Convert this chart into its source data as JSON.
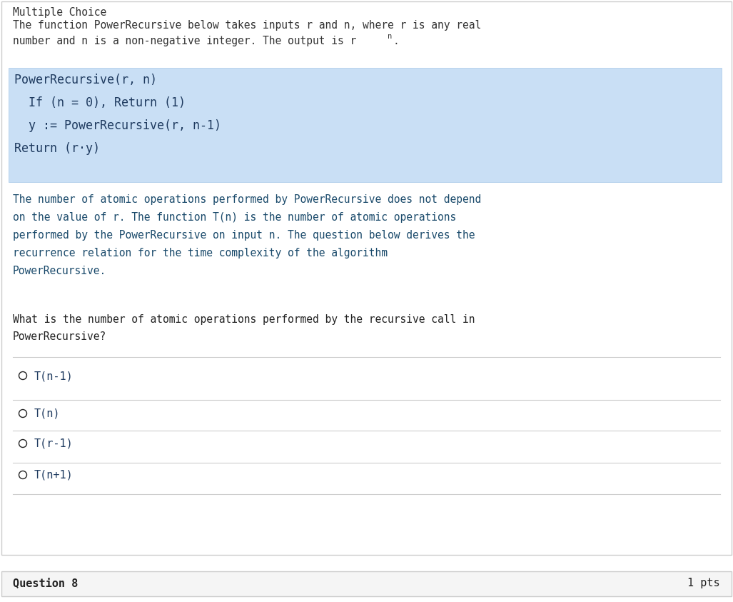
{
  "bg_color": "#ffffff",
  "border_color": "#cccccc",
  "header_line1": "Multiple Choice",
  "header_line2": "The function PowerRecursive below takes inputs r and n, where r is any real",
  "header_line3_before_super": "number and n is a non-negative integer. The output is r",
  "header_line3_super": "n",
  "header_line3_after_super": ".",
  "code_bg_color": "#c9dff5",
  "code_border_color": "#a8c8e8",
  "code_lines": [
    "PowerRecursive(r, n)",
    "  If (n = 0), Return (1)",
    "  y := PowerRecursive(r, n-1)",
    "Return (r·y)"
  ],
  "desc_lines": [
    "The number of atomic operations performed by PowerRecursive does not depend",
    "on the value of r. The function T(n) is the number of atomic operations",
    "performed by the PowerRecursive on input n. The question below derives the",
    "recurrence relation for the time complexity of the algorithm",
    "PowerRecursive."
  ],
  "question_lines": [
    "What is the number of atomic operations performed by the recursive call in",
    "PowerRecursive?"
  ],
  "options": [
    "T(n-1)",
    "T(n)",
    "T(r-1)",
    "T(n+1)"
  ],
  "footer_left": "Question 8",
  "footer_right": "1 pts",
  "color_dark": "#222222",
  "color_code_text": "#1e3a5f",
  "color_desc_text": "#1a4a6b",
  "color_option_text": "#1e3a5f",
  "color_header_text": "#333333",
  "color_separator": "#cccccc",
  "font_mono": "DejaVu Sans Mono"
}
